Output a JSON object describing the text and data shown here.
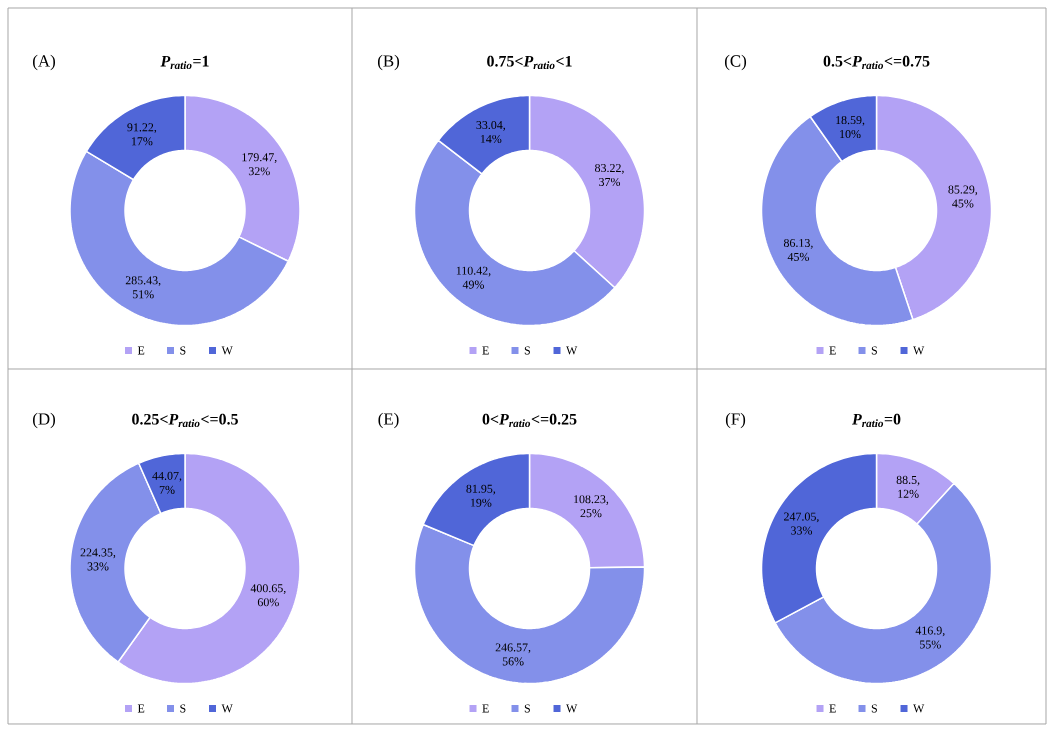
{
  "chart_data": [
    {
      "type": "donut",
      "title": "*P$_{ratio}$*=1",
      "annotations": [
        "(A)"
      ],
      "categories": [
        "E",
        "S",
        "W"
      ],
      "values": [
        179.47,
        285.43,
        91.22
      ],
      "colors": [
        "#b3a2f5",
        "#8390ea",
        "#5066d8"
      ],
      "value_labels": [
        "179.47, 32%",
        "285.43, 51%",
        "91.22, 17%"
      ],
      "legend": "bottom"
    },
    {
      "type": "donut",
      "title": "0.75<*P$_{ratio}$*<1",
      "annotations": [
        "(B)"
      ],
      "categories": [
        "E",
        "S",
        "W"
      ],
      "values": [
        83.22,
        110.42,
        33.04
      ],
      "colors": [
        "#b3a2f5",
        "#8390ea",
        "#5066d8"
      ],
      "value_labels": [
        "83.22, 37%",
        "110.42, 49%",
        "33.04, 14%"
      ],
      "legend": "bottom"
    },
    {
      "type": "donut",
      "title": "0.5<*P$_{ratio}$*<=0.75",
      "annotations": [
        "(C)"
      ],
      "categories": [
        "E",
        "S",
        "W"
      ],
      "values": [
        85.29,
        86.13,
        18.59
      ],
      "colors": [
        "#b3a2f5",
        "#8390ea",
        "#5066d8"
      ],
      "value_labels": [
        "85.29, 45%",
        "86.13, 45%",
        "18.59, 10%"
      ],
      "legend": "bottom"
    },
    {
      "type": "donut",
      "title": "0.25<*P$_{ratio}$*<=0.5",
      "annotations": [
        "(D)"
      ],
      "categories": [
        "E",
        "S",
        "W"
      ],
      "values": [
        400.65,
        224.35,
        44.07
      ],
      "colors": [
        "#b3a2f5",
        "#8390ea",
        "#5066d8"
      ],
      "value_labels": [
        "400.65, 60%",
        "224.35, 33%",
        "44.07, 7%"
      ],
      "legend": "bottom"
    },
    {
      "type": "donut",
      "title": "0<*P$_{ratio}$*<=0.25",
      "annotations": [
        "(E)"
      ],
      "categories": [
        "E",
        "S",
        "W"
      ],
      "values": [
        108.23,
        246.57,
        81.95
      ],
      "colors": [
        "#b3a2f5",
        "#8390ea",
        "#5066d8"
      ],
      "value_labels": [
        "108.23, 25%",
        "246.57, 56%",
        "81.95, 19%"
      ],
      "legend": "bottom"
    },
    {
      "type": "donut",
      "title": "*P$_{ratio}$*=0",
      "annotations": [
        "(F)"
      ],
      "categories": [
        "E",
        "S",
        "W"
      ],
      "values": [
        88.5,
        416.9,
        247.05
      ],
      "colors": [
        "#b3a2f5",
        "#8390ea",
        "#5066d8"
      ],
      "value_labels": [
        "88.5, 12%",
        "416.9, 55%",
        "247.05, 33%"
      ],
      "legend": "bottom"
    }
  ]
}
